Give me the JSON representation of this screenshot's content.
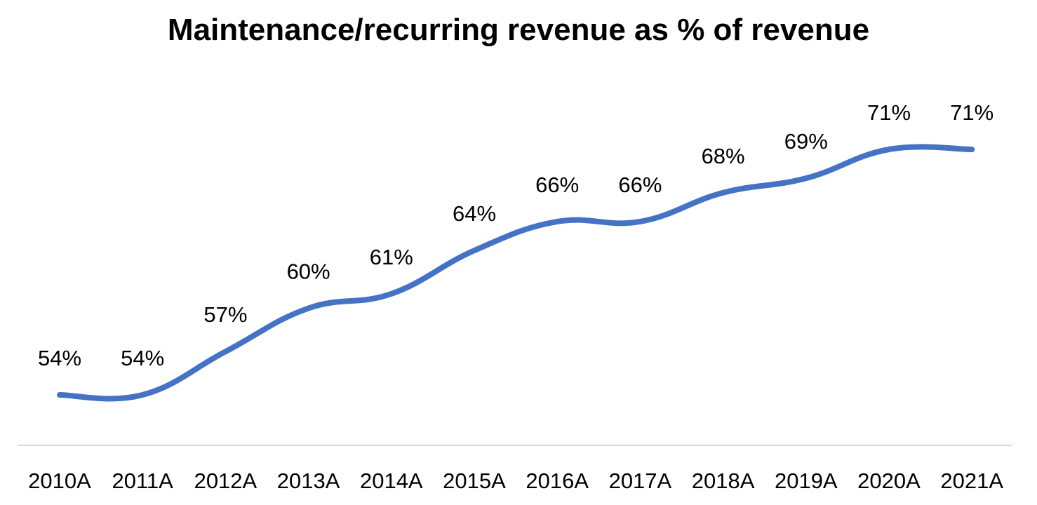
{
  "chart_data": {
    "type": "line",
    "title": "Maintenance/recurring revenue as % of revenue",
    "xlabel": "",
    "ylabel": "",
    "categories": [
      "2010A",
      "2011A",
      "2012A",
      "2013A",
      "2014A",
      "2015A",
      "2016A",
      "2017A",
      "2018A",
      "2019A",
      "2020A",
      "2021A"
    ],
    "series": [
      {
        "values": [
          54,
          54,
          57,
          60,
          61,
          64,
          66,
          66,
          68,
          69,
          71,
          71
        ],
        "labels": [
          "54%",
          "54%",
          "57%",
          "60%",
          "61%",
          "64%",
          "66%",
          "66%",
          "68%",
          "69%",
          "71%",
          "71%"
        ]
      }
    ],
    "ylim": [
      45,
      75
    ],
    "grid": false,
    "legend": "none",
    "colors": {
      "line": "#4472C4",
      "axis": "#D9D9D9",
      "text": "#000000"
    }
  }
}
